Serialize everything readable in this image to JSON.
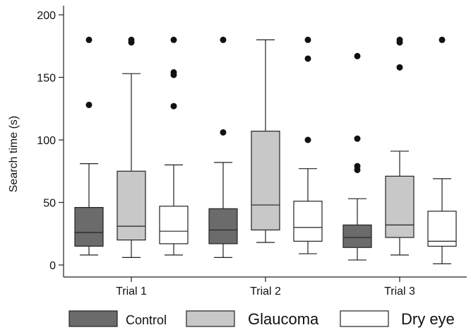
{
  "chart_data": {
    "type": "boxplot",
    "ylabel": "Search time (s)",
    "ylim": [
      0,
      200
    ],
    "yticks": [
      "0",
      "50",
      "100",
      "150",
      "200"
    ],
    "categories": [
      "Trial 1",
      "Trial 2",
      "Trial 3"
    ],
    "legend_position": "bottom",
    "grid": false,
    "series": [
      {
        "name": "Control",
        "color": "#6b6b6b",
        "boxes": [
          {
            "whisker_low": 8,
            "q1": 15,
            "median": 26,
            "q3": 46,
            "whisker_high": 81,
            "outliers": [
              128,
              180
            ]
          },
          {
            "whisker_low": 6,
            "q1": 17,
            "median": 28,
            "q3": 45,
            "whisker_high": 82,
            "outliers": [
              106,
              180
            ]
          },
          {
            "whisker_low": 4,
            "q1": 14,
            "median": 22,
            "q3": 32,
            "whisker_high": 53,
            "outliers": [
              76,
              79,
              101,
              167
            ]
          }
        ]
      },
      {
        "name": "Glaucoma",
        "color": "#c8c8c8",
        "boxes": [
          {
            "whisker_low": 6,
            "q1": 20,
            "median": 31,
            "q3": 75,
            "whisker_high": 153,
            "outliers": [
              178,
              180
            ]
          },
          {
            "whisker_low": 18,
            "q1": 28,
            "median": 48,
            "q3": 107,
            "whisker_high": 180,
            "outliers": []
          },
          {
            "whisker_low": 8,
            "q1": 22,
            "median": 32,
            "q3": 71,
            "whisker_high": 91,
            "outliers": [
              158,
              178,
              180
            ]
          }
        ]
      },
      {
        "name": "Dry eye",
        "color": "#ffffff",
        "boxes": [
          {
            "whisker_low": 8,
            "q1": 17,
            "median": 27,
            "q3": 47,
            "whisker_high": 80,
            "outliers": [
              127,
              152,
              154,
              180
            ]
          },
          {
            "whisker_low": 9,
            "q1": 19,
            "median": 30,
            "q3": 51,
            "whisker_high": 77,
            "outliers": [
              100,
              165,
              180
            ]
          },
          {
            "whisker_low": 1,
            "q1": 15,
            "median": 19,
            "q3": 43,
            "whisker_high": 69,
            "outliers": [
              180
            ]
          }
        ]
      }
    ]
  }
}
